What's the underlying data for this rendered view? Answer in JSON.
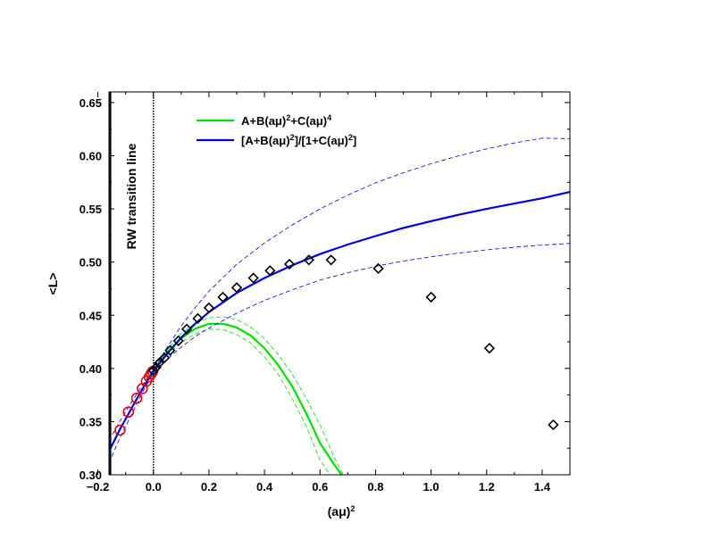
{
  "chart_data": {
    "type": "scatter",
    "xlabel": "(aμ)",
    "xlabel_sup": "2",
    "ylabel": "<L>",
    "xlim": [
      -0.16,
      1.5
    ],
    "ylim": [
      0.3,
      0.66
    ],
    "x_ticks": [
      -0.2,
      0.0,
      0.2,
      0.4,
      0.6,
      0.8,
      1.0,
      1.2,
      1.4
    ],
    "x_tick_labels": [
      "−0.2",
      "0.0",
      "0.2",
      "0.4",
      "0.6",
      "0.8",
      "1.0",
      "1.2",
      "1.4"
    ],
    "y_ticks": [
      0.3,
      0.35,
      0.4,
      0.45,
      0.5,
      0.55,
      0.6,
      0.65
    ],
    "y_tick_labels": [
      "0.30",
      "0.35",
      "0.40",
      "0.45",
      "0.50",
      "0.55",
      "0.60",
      "0.65"
    ],
    "grid": false,
    "legend_position": "top-center",
    "annotation": "RW transition line",
    "vertical_lines": [
      {
        "x": -0.155,
        "style": "solid",
        "color": "#000000"
      },
      {
        "x": 0.0,
        "style": "dotted",
        "color": "#000000"
      }
    ],
    "series": [
      {
        "kind": "line",
        "color": "#00dd00",
        "legend_parts": [
          {
            "t": "A+B(aμ)"
          },
          {
            "t": "2",
            "sup": true
          },
          {
            "t": "+C(aμ)"
          },
          {
            "t": "4",
            "sup": true
          }
        ],
        "x": [
          0.0,
          0.05,
          0.1,
          0.15,
          0.2,
          0.25,
          0.3,
          0.35,
          0.4,
          0.45,
          0.5,
          0.55,
          0.6,
          0.65,
          0.7
        ],
        "y": [
          0.3975,
          0.4153,
          0.4283,
          0.4373,
          0.442,
          0.442,
          0.4385,
          0.431,
          0.419,
          0.403,
          0.383,
          0.358,
          0.33,
          0.31,
          0.292
        ],
        "band_upper": [
          0.3985,
          0.418,
          0.433,
          0.4425,
          0.4475,
          0.4485,
          0.446,
          0.439,
          0.428,
          0.413,
          0.3945,
          0.372,
          0.347,
          0.317,
          0.292
        ],
        "band_lower": [
          0.3965,
          0.413,
          0.4245,
          0.4325,
          0.437,
          0.4365,
          0.432,
          0.424,
          0.411,
          0.3945,
          0.3715,
          0.346,
          0.314,
          0.295,
          0.28
        ]
      },
      {
        "kind": "line",
        "color": "#0000dd",
        "legend_parts": [
          {
            "t": "[A+B(aμ)"
          },
          {
            "t": "2",
            "sup": true
          },
          {
            "t": "]/[1+C(aμ)"
          },
          {
            "t": "2",
            "sup": true
          },
          {
            "t": "]"
          }
        ],
        "x": [
          -0.16,
          -0.12,
          -0.08,
          -0.04,
          0.0,
          0.05,
          0.1,
          0.15,
          0.2,
          0.3,
          0.4,
          0.5,
          0.6,
          0.7,
          0.8,
          0.9,
          1.0,
          1.1,
          1.2,
          1.3,
          1.4,
          1.5
        ],
        "y": [
          0.322,
          0.343,
          0.362,
          0.3805,
          0.3975,
          0.414,
          0.429,
          0.442,
          0.453,
          0.471,
          0.485,
          0.497,
          0.5075,
          0.5165,
          0.5245,
          0.532,
          0.5385,
          0.5445,
          0.55,
          0.555,
          0.56,
          0.566
        ],
        "band_upper": [
          0.332,
          0.3505,
          0.368,
          0.384,
          0.399,
          0.42,
          0.44,
          0.457,
          0.4725,
          0.498,
          0.518,
          0.535,
          0.55,
          0.563,
          0.5745,
          0.584,
          0.5925,
          0.6,
          0.6065,
          0.612,
          0.6165,
          0.616
        ],
        "band_lower": [
          0.311,
          0.335,
          0.356,
          0.377,
          0.396,
          0.409,
          0.42,
          0.43,
          0.438,
          0.452,
          0.464,
          0.474,
          0.483,
          0.49,
          0.496,
          0.501,
          0.505,
          0.5085,
          0.5115,
          0.514,
          0.516,
          0.5175
        ]
      },
      {
        "kind": "points",
        "marker": "circle",
        "color": "#dd0000",
        "x": [
          -0.12,
          -0.09,
          -0.06,
          -0.04,
          -0.025,
          -0.015,
          -0.008,
          -0.003
        ],
        "y": [
          0.342,
          0.359,
          0.372,
          0.381,
          0.388,
          0.392,
          0.395,
          0.397
        ]
      },
      {
        "kind": "points",
        "marker": "diamond",
        "color": "#000000",
        "x": [
          0.0,
          0.01,
          0.02,
          0.04,
          0.06,
          0.09,
          0.12,
          0.16,
          0.2,
          0.25,
          0.3,
          0.36,
          0.42,
          0.49,
          0.56,
          0.64,
          0.81,
          1.0,
          1.21,
          1.44
        ],
        "y": [
          0.398,
          0.401,
          0.405,
          0.41,
          0.417,
          0.426,
          0.437,
          0.447,
          0.457,
          0.467,
          0.476,
          0.485,
          0.492,
          0.498,
          0.502,
          0.502,
          0.494,
          0.467,
          0.419,
          0.347
        ]
      }
    ]
  }
}
